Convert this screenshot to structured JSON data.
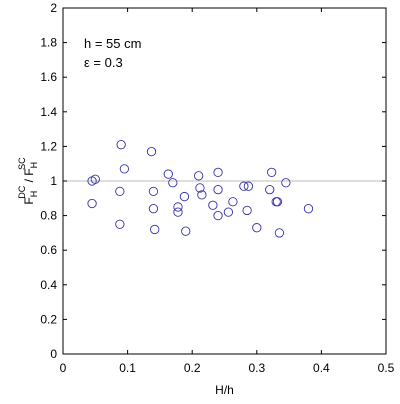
{
  "chart_data": {
    "type": "scatter",
    "xlabel": "H/h",
    "ylabel": {
      "main1": "F",
      "sub1": "H",
      "sup1": "DC",
      "slash": " / ",
      "main2": "F",
      "sub2": "H",
      "sup2": "SC"
    },
    "xlim": [
      0,
      0.5
    ],
    "ylim": [
      0,
      2
    ],
    "xticks": [
      "0",
      "0.1",
      "0.2",
      "0.3",
      "0.4",
      "0.5"
    ],
    "yticks": [
      "0",
      "0.2",
      "0.4",
      "0.6",
      "0.8",
      "1",
      "1.2",
      "1.4",
      "1.6",
      "1.8",
      "2"
    ],
    "annotations": [
      "h = 55 cm",
      "ε = 0.3"
    ],
    "reference_line_y": 1.0,
    "colors": {
      "marker": "#3333aa",
      "reference": "#bbbbbb",
      "axis": "#000000"
    },
    "series": [
      {
        "points": [
          [
            0.045,
            1.0
          ],
          [
            0.05,
            1.01
          ],
          [
            0.045,
            0.87
          ],
          [
            0.09,
            1.21
          ],
          [
            0.095,
            1.07
          ],
          [
            0.088,
            0.94
          ],
          [
            0.088,
            0.75
          ],
          [
            0.137,
            1.17
          ],
          [
            0.14,
            0.94
          ],
          [
            0.14,
            0.84
          ],
          [
            0.142,
            0.72
          ],
          [
            0.163,
            1.04
          ],
          [
            0.17,
            0.99
          ],
          [
            0.178,
            0.85
          ],
          [
            0.178,
            0.82
          ],
          [
            0.188,
            0.91
          ],
          [
            0.19,
            0.71
          ],
          [
            0.21,
            1.03
          ],
          [
            0.212,
            0.96
          ],
          [
            0.215,
            0.92
          ],
          [
            0.232,
            0.86
          ],
          [
            0.24,
            1.05
          ],
          [
            0.24,
            0.95
          ],
          [
            0.24,
            0.8
          ],
          [
            0.256,
            0.82
          ],
          [
            0.263,
            0.88
          ],
          [
            0.28,
            0.97
          ],
          [
            0.287,
            0.97
          ],
          [
            0.285,
            0.83
          ],
          [
            0.3,
            0.73
          ],
          [
            0.32,
            0.95
          ],
          [
            0.323,
            1.05
          ],
          [
            0.33,
            0.88
          ],
          [
            0.332,
            0.88
          ],
          [
            0.335,
            0.7
          ],
          [
            0.345,
            0.99
          ],
          [
            0.38,
            0.84
          ]
        ]
      }
    ]
  }
}
